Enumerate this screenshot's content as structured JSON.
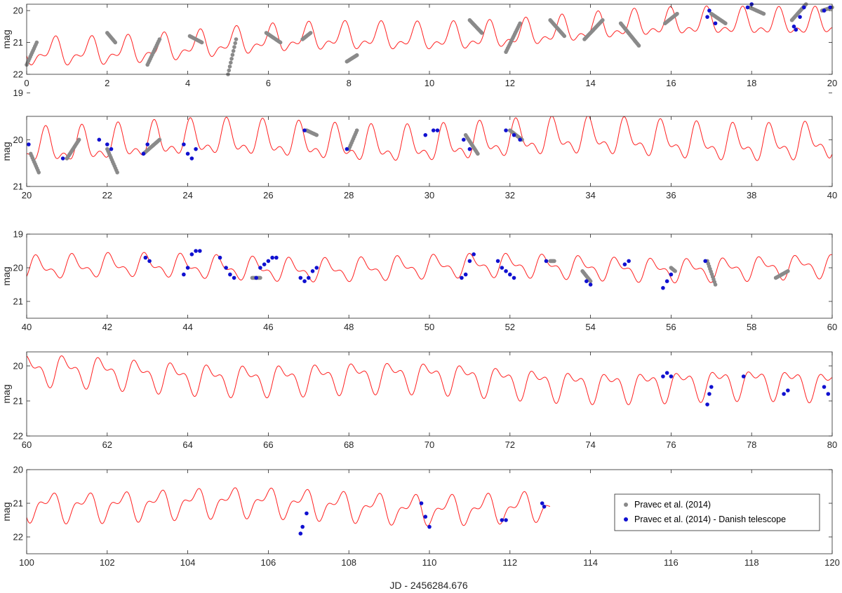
{
  "chart_data": {
    "type": "scatter",
    "xlabel": "JD - 2456284.676",
    "legend": {
      "placement": "inside-right of bottom panel",
      "entries": [
        {
          "label": "Pravec et al. (2014)",
          "color": "#888888",
          "marker": "dot"
        },
        {
          "label": "Pravec et al. (2014) - Danish telescope",
          "color": "#1010d0",
          "marker": "dot"
        }
      ]
    },
    "model_color": "#ff2020",
    "panels": [
      {
        "xlim": [
          0,
          20
        ],
        "ylim": [
          22,
          19.8
        ],
        "y_reversed": true,
        "ylabel": "mag",
        "xticks": [
          0,
          2,
          4,
          6,
          8,
          10,
          12,
          14,
          16,
          18,
          20
        ],
        "yticks": [
          20,
          21,
          22
        ],
        "model": {
          "base_start": 21.3,
          "base_end": 20.3,
          "amp": 0.45
        },
        "gray_segments": [
          [
            0.0,
            0.25,
            21.7,
            21.0
          ],
          [
            2.0,
            2.2,
            20.7,
            21.0
          ],
          [
            3.0,
            3.3,
            21.7,
            20.9
          ],
          [
            4.05,
            4.35,
            20.8,
            21.0
          ],
          [
            5.0,
            5.2,
            22.0,
            20.9
          ],
          [
            5.95,
            6.3,
            20.7,
            21.0
          ],
          [
            6.85,
            7.05,
            20.9,
            20.7
          ],
          [
            7.95,
            8.2,
            21.6,
            21.4
          ],
          [
            11.0,
            11.3,
            20.3,
            20.7
          ],
          [
            11.9,
            12.25,
            21.3,
            20.4
          ],
          [
            13.0,
            13.35,
            20.3,
            20.8
          ],
          [
            13.85,
            14.3,
            20.9,
            20.3
          ],
          [
            14.75,
            15.2,
            20.4,
            21.1
          ],
          [
            15.85,
            16.15,
            20.4,
            20.1
          ],
          [
            17.0,
            17.35,
            20.1,
            20.4
          ],
          [
            17.95,
            18.3,
            19.9,
            20.1
          ],
          [
            19.0,
            19.35,
            20.3,
            19.8
          ],
          [
            19.75,
            20.0,
            20.0,
            19.9
          ]
        ],
        "blue_points": [
          [
            16.9,
            20.2
          ],
          [
            16.95,
            20.0
          ],
          [
            17.1,
            20.4
          ],
          [
            17.9,
            19.9
          ],
          [
            18.0,
            19.8
          ],
          [
            19.05,
            20.5
          ],
          [
            19.1,
            20.6
          ],
          [
            19.2,
            20.2
          ],
          [
            19.3,
            19.9
          ],
          [
            19.8,
            20.0
          ],
          [
            19.95,
            19.9
          ]
        ]
      },
      {
        "xlim": [
          20,
          40
        ],
        "ylim": [
          21,
          19.5
        ],
        "y_reversed": true,
        "ylabel": "mag",
        "xticks": [
          20,
          22,
          24,
          26,
          28,
          30,
          32,
          34,
          36,
          38,
          40
        ],
        "yticks": [
          19,
          20,
          21
        ],
        "model": {
          "base_start": 20.1,
          "base_end": 20.0,
          "amp": 0.4
        },
        "gray_segments": [
          [
            20.1,
            20.3,
            20.3,
            20.7
          ],
          [
            21.0,
            21.3,
            20.4,
            20.0
          ],
          [
            22.0,
            22.25,
            20.2,
            20.7
          ],
          [
            22.9,
            23.3,
            20.3,
            20.0
          ],
          [
            26.95,
            27.2,
            19.8,
            19.9
          ],
          [
            28.0,
            28.2,
            20.2,
            19.8
          ],
          [
            30.9,
            31.2,
            19.9,
            20.3
          ],
          [
            32.0,
            32.3,
            19.8,
            20.0
          ]
        ],
        "blue_points": [
          [
            20.05,
            20.1
          ],
          [
            20.9,
            20.4
          ],
          [
            21.8,
            20.0
          ],
          [
            22.0,
            20.1
          ],
          [
            22.1,
            20.2
          ],
          [
            22.9,
            20.3
          ],
          [
            23.0,
            20.1
          ],
          [
            23.9,
            20.1
          ],
          [
            24.0,
            20.3
          ],
          [
            24.1,
            20.4
          ],
          [
            24.2,
            20.2
          ],
          [
            26.9,
            19.8
          ],
          [
            27.95,
            20.2
          ],
          [
            29.9,
            19.9
          ],
          [
            30.1,
            19.8
          ],
          [
            30.2,
            19.8
          ],
          [
            30.85,
            20.0
          ],
          [
            31.0,
            20.2
          ],
          [
            31.9,
            19.8
          ],
          [
            32.1,
            19.9
          ],
          [
            32.25,
            20.0
          ]
        ]
      },
      {
        "xlim": [
          40,
          60
        ],
        "ylim": [
          21.5,
          19
        ],
        "y_reversed": true,
        "ylabel": "mag",
        "xticks": [
          40,
          42,
          44,
          46,
          48,
          50,
          52,
          54,
          56,
          58,
          60
        ],
        "yticks": [
          19,
          20,
          21
        ],
        "model": {
          "base_start": 20.0,
          "base_end": 20.0,
          "amp": 0.35
        },
        "gray_segments": [
          [
            45.6,
            45.8,
            20.3,
            20.3
          ],
          [
            53.0,
            53.1,
            19.8,
            19.8
          ],
          [
            53.8,
            54.0,
            20.1,
            20.4
          ],
          [
            56.0,
            56.1,
            20.0,
            20.1
          ],
          [
            56.9,
            57.1,
            19.8,
            20.5
          ],
          [
            58.6,
            58.9,
            20.3,
            20.1
          ]
        ],
        "blue_points": [
          [
            42.95,
            19.7
          ],
          [
            43.05,
            19.8
          ],
          [
            43.9,
            20.2
          ],
          [
            44.0,
            20.0
          ],
          [
            44.1,
            19.6
          ],
          [
            44.2,
            19.5
          ],
          [
            44.3,
            19.5
          ],
          [
            44.8,
            19.7
          ],
          [
            44.95,
            20.0
          ],
          [
            45.05,
            20.2
          ],
          [
            45.15,
            20.3
          ],
          [
            45.7,
            20.3
          ],
          [
            45.8,
            20.0
          ],
          [
            45.9,
            19.9
          ],
          [
            46.0,
            19.8
          ],
          [
            46.1,
            19.7
          ],
          [
            46.2,
            19.7
          ],
          [
            46.8,
            20.3
          ],
          [
            46.9,
            20.4
          ],
          [
            47.0,
            20.3
          ],
          [
            47.1,
            20.1
          ],
          [
            47.2,
            20.0
          ],
          [
            50.8,
            20.3
          ],
          [
            50.9,
            20.2
          ],
          [
            51.0,
            19.8
          ],
          [
            51.1,
            19.6
          ],
          [
            51.7,
            19.8
          ],
          [
            51.8,
            20.0
          ],
          [
            51.9,
            20.1
          ],
          [
            52.0,
            20.2
          ],
          [
            52.1,
            20.3
          ],
          [
            52.9,
            19.8
          ],
          [
            53.9,
            20.4
          ],
          [
            54.0,
            20.5
          ],
          [
            54.85,
            19.9
          ],
          [
            54.95,
            19.8
          ],
          [
            55.8,
            20.6
          ],
          [
            55.9,
            20.4
          ],
          [
            56.0,
            20.2
          ],
          [
            56.85,
            19.8
          ]
        ]
      },
      {
        "xlim": [
          60,
          80
        ],
        "ylim": [
          22,
          19.6
        ],
        "y_reversed": true,
        "ylabel": "mag",
        "xticks": [
          60,
          62,
          64,
          66,
          68,
          70,
          72,
          74,
          76,
          78,
          80
        ],
        "yticks": [
          20,
          21,
          22
        ],
        "model": {
          "base_start": 20.2,
          "base_end": 20.6,
          "amp": 0.45
        },
        "gray_segments": [],
        "blue_points": [
          [
            75.8,
            20.3
          ],
          [
            75.9,
            20.2
          ],
          [
            76.0,
            20.3
          ],
          [
            76.9,
            21.1
          ],
          [
            76.95,
            20.8
          ],
          [
            77.0,
            20.6
          ],
          [
            77.8,
            20.3
          ],
          [
            78.8,
            20.8
          ],
          [
            78.9,
            20.7
          ],
          [
            79.8,
            20.6
          ],
          [
            79.9,
            20.8
          ]
        ]
      },
      {
        "xlim": [
          100,
          120
        ],
        "ylim": [
          22.5,
          20
        ],
        "y_reversed": true,
        "ylabel": "mag",
        "xticks": [
          100,
          102,
          104,
          106,
          108,
          110,
          112,
          114,
          116,
          118,
          120
        ],
        "yticks": [
          20,
          21,
          22
        ],
        "model": {
          "base_start": 21.0,
          "base_end": 21.2,
          "amp": 0.45,
          "x_end": 113
        },
        "gray_segments": [],
        "blue_points": [
          [
            106.8,
            21.9
          ],
          [
            106.85,
            21.7
          ],
          [
            106.95,
            21.3
          ],
          [
            109.8,
            21.0
          ],
          [
            109.9,
            21.4
          ],
          [
            110.0,
            21.7
          ],
          [
            111.8,
            21.5
          ],
          [
            111.9,
            21.5
          ],
          [
            112.8,
            21.0
          ],
          [
            112.85,
            21.1
          ]
        ]
      }
    ]
  }
}
